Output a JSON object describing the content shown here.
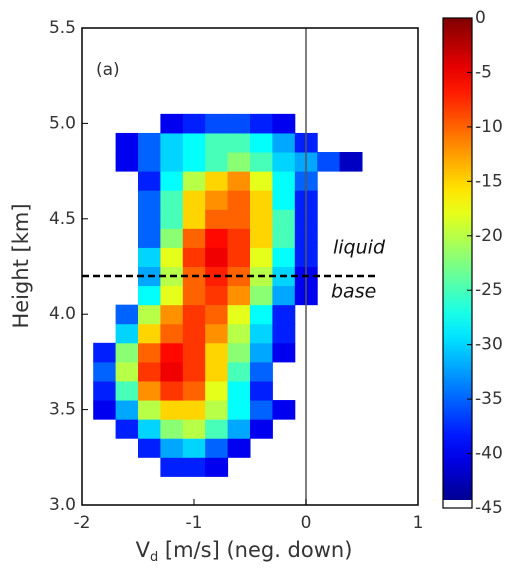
{
  "chart_data": {
    "type": "heatmap",
    "panel_label": "(a)",
    "xlabel": {
      "main": "V",
      "sub": "d",
      "rest": " [m/s] (neg. down)"
    },
    "ylabel": "Height [km]",
    "xlim": [
      -2,
      1
    ],
    "xticks": [
      -2,
      -1,
      0,
      1
    ],
    "ylim": [
      3,
      5.5
    ],
    "yticks": [
      {
        "value": 3,
        "label": "3.0"
      },
      3.5,
      {
        "value": 4,
        "label": "4.0"
      },
      4.5,
      {
        "value": 5,
        "label": "5.0"
      },
      5.5
    ],
    "colormap": "jet",
    "zlim": [
      -45,
      0
    ],
    "zticks": [
      0,
      -5,
      -10,
      -15,
      -20,
      -25,
      -30,
      -35,
      -40,
      -45
    ],
    "x": [
      -1.8,
      -1.6,
      -1.4,
      -1.2,
      -1.0,
      -0.8,
      -0.6,
      -0.4,
      -0.2,
      0,
      0.2,
      0.4
    ],
    "y": [
      3.2,
      3.3,
      3.4,
      3.5,
      3.6,
      3.7,
      3.8,
      3.9,
      4.0,
      4.1,
      4.2,
      4.3,
      4.4,
      4.5,
      4.6,
      4.7,
      4.8,
      4.9,
      5.0
    ],
    "z": [
      [
        null,
        null,
        null,
        -38,
        -38,
        -40,
        null,
        null,
        null,
        null,
        null,
        null
      ],
      [
        null,
        null,
        -38,
        -32,
        -30,
        -35,
        -40,
        null,
        null,
        null,
        null,
        null
      ],
      [
        null,
        -38,
        -30,
        -22,
        -20,
        -25,
        -32,
        -40,
        null,
        null,
        null,
        null
      ],
      [
        -40,
        -32,
        -20,
        -15,
        -15,
        -20,
        -28,
        -35,
        -40,
        null,
        null,
        null
      ],
      [
        -38,
        -25,
        -12,
        -8,
        -10,
        -18,
        -28,
        -38,
        null,
        null,
        null,
        null
      ],
      [
        -35,
        -20,
        -8,
        -5,
        -8,
        -15,
        -25,
        -35,
        null,
        null,
        null,
        null
      ],
      [
        -38,
        -22,
        -10,
        -6,
        -8,
        -15,
        -22,
        -32,
        -40,
        null,
        null,
        null
      ],
      [
        null,
        -30,
        -15,
        -10,
        -8,
        -12,
        -20,
        -30,
        -38,
        null,
        null,
        null
      ],
      [
        null,
        -35,
        -20,
        -12,
        -8,
        -10,
        -18,
        -28,
        -38,
        null,
        null,
        null
      ],
      [
        null,
        null,
        -28,
        -18,
        -10,
        -8,
        -12,
        -22,
        -32,
        -40,
        null,
        null
      ],
      [
        null,
        null,
        -32,
        -20,
        -10,
        -7,
        -10,
        -20,
        -30,
        -40,
        null,
        null
      ],
      [
        null,
        null,
        -30,
        -18,
        -8,
        -5,
        -8,
        -18,
        -28,
        -38,
        null,
        null
      ],
      [
        null,
        null,
        -35,
        -22,
        -10,
        -6,
        -8,
        -15,
        -25,
        -38,
        null,
        null
      ],
      [
        null,
        null,
        -35,
        -25,
        -15,
        -10,
        -10,
        -15,
        -25,
        -38,
        null,
        null
      ],
      [
        null,
        null,
        -35,
        -25,
        -15,
        -12,
        -10,
        -15,
        -28,
        -38,
        null,
        null
      ],
      [
        null,
        null,
        -38,
        -28,
        -20,
        -15,
        -12,
        -18,
        -28,
        -35,
        null,
        null
      ],
      [
        null,
        -40,
        -35,
        -30,
        -28,
        -25,
        -22,
        -25,
        -30,
        -32,
        -36,
        -42
      ],
      [
        null,
        -40,
        -35,
        -30,
        -28,
        -25,
        -25,
        -28,
        -32,
        -38,
        null,
        null
      ],
      [
        null,
        null,
        null,
        -40,
        -38,
        -36,
        -36,
        -38,
        -40,
        null,
        null,
        null
      ]
    ],
    "vline": 0,
    "hline": 4.2,
    "annotations": [
      "liquid",
      "base"
    ]
  }
}
